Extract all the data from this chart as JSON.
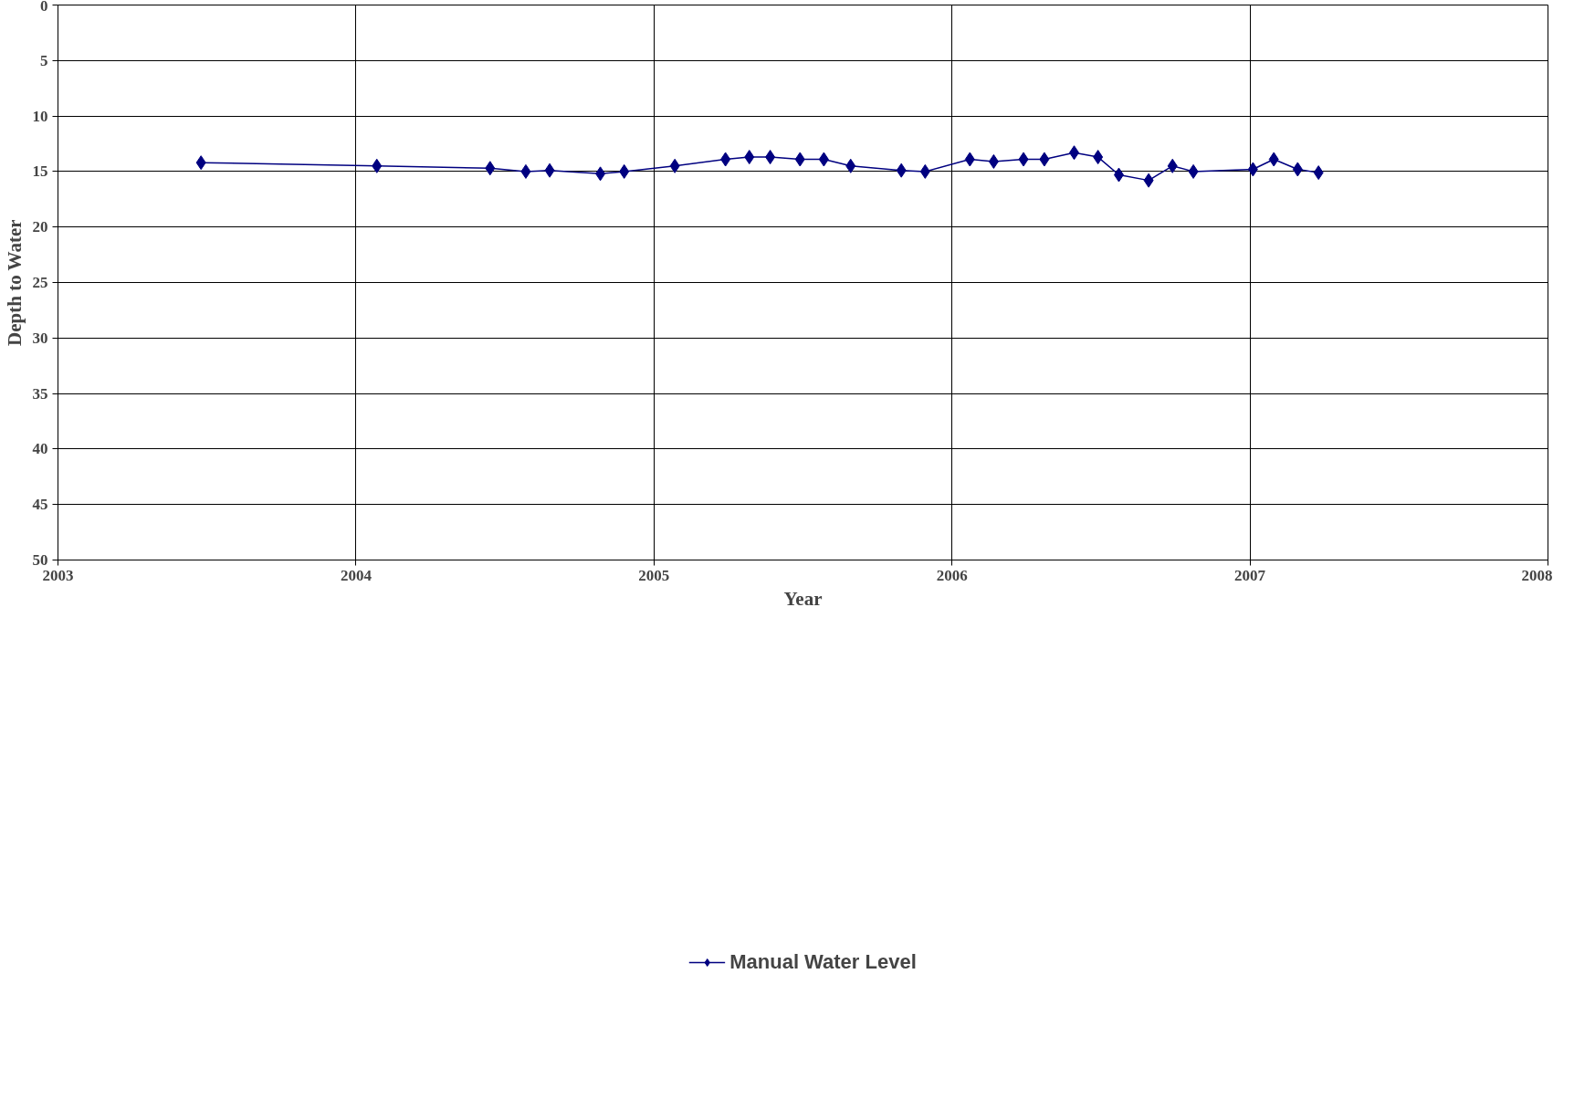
{
  "chart_data": {
    "type": "line",
    "xlabel": "Year",
    "ylabel": "Depth to Water",
    "xlim": [
      2003,
      2008
    ],
    "xticks": [
      2003,
      2004,
      2005,
      2006,
      2007,
      2008
    ],
    "ylim": [
      50,
      0
    ],
    "yticks": [
      0,
      5,
      10,
      15,
      20,
      25,
      30,
      35,
      40,
      45,
      50
    ],
    "grid": true,
    "legend": "bottom",
    "marker": "diamond",
    "line_style": "solid",
    "series": [
      {
        "name": "Manual Water Level",
        "color": "#000080",
        "x": [
          2003.48,
          2004.07,
          2004.45,
          2004.57,
          2004.65,
          2004.82,
          2004.9,
          2005.07,
          2005.24,
          2005.32,
          2005.39,
          2005.49,
          2005.57,
          2005.66,
          2005.83,
          2005.91,
          2006.06,
          2006.14,
          2006.24,
          2006.31,
          2006.41,
          2006.49,
          2006.56,
          2006.66,
          2006.74,
          2006.81,
          2007.01,
          2007.08,
          2007.16,
          2007.23
        ],
        "values": [
          14.2,
          14.5,
          14.7,
          15.0,
          14.9,
          15.2,
          15.0,
          14.5,
          13.9,
          13.7,
          13.7,
          13.9,
          13.9,
          14.5,
          14.9,
          15.0,
          13.9,
          14.1,
          13.9,
          13.9,
          13.3,
          13.7,
          15.3,
          15.8,
          14.5,
          15.0,
          14.8,
          13.9,
          14.8,
          15.1
        ]
      }
    ]
  }
}
